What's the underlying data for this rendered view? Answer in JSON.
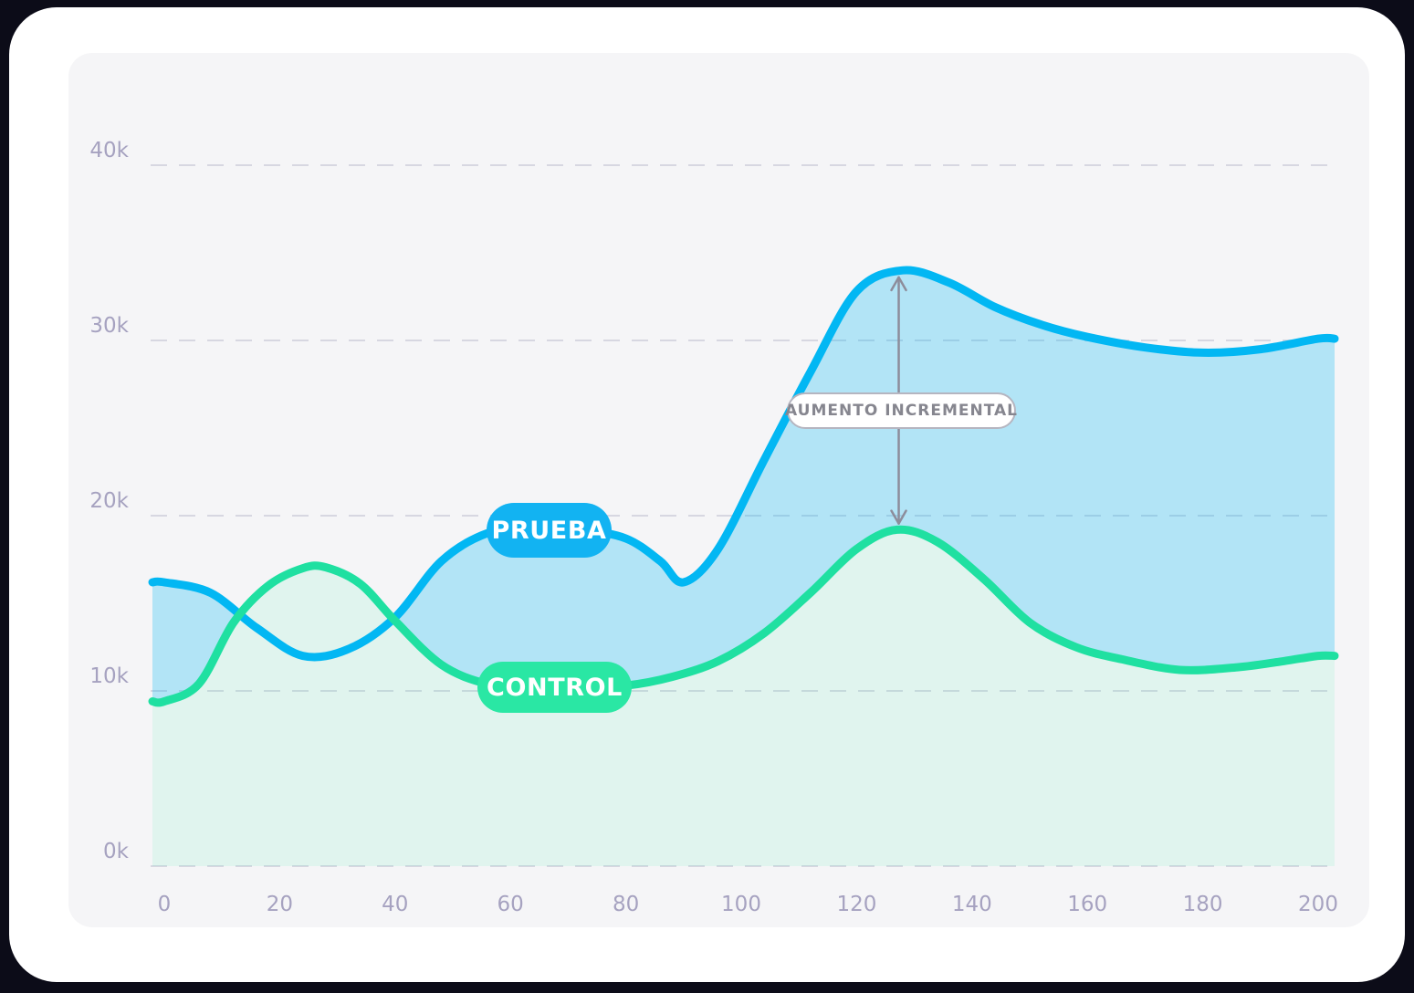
{
  "chart_data": {
    "type": "area",
    "title": "",
    "xlabel": "",
    "ylabel": "",
    "y_unit": "thousands",
    "xlim": [
      0,
      200
    ],
    "ylim": [
      0,
      40
    ],
    "grid": "dashed-horizontal",
    "x_ticks": [
      {
        "v": 0,
        "label": "0"
      },
      {
        "v": 20,
        "label": "20"
      },
      {
        "v": 40,
        "label": "40"
      },
      {
        "v": 60,
        "label": "60"
      },
      {
        "v": 80,
        "label": "80"
      },
      {
        "v": 100,
        "label": "100"
      },
      {
        "v": 120,
        "label": "120"
      },
      {
        "v": 140,
        "label": "140"
      },
      {
        "v": 160,
        "label": "160"
      },
      {
        "v": 180,
        "label": "180"
      },
      {
        "v": 200,
        "label": "200"
      }
    ],
    "y_ticks": [
      {
        "v": 0,
        "label": "0k"
      },
      {
        "v": 10,
        "label": "10k"
      },
      {
        "v": 20,
        "label": "20k"
      },
      {
        "v": 30,
        "label": "30k"
      },
      {
        "v": 40,
        "label": "40k"
      }
    ],
    "series": [
      {
        "name": "PRUEBA",
        "role": "test",
        "points": [
          [
            0,
            16.2
          ],
          [
            8,
            15.6
          ],
          [
            16,
            13.6
          ],
          [
            24,
            12.0
          ],
          [
            32,
            12.4
          ],
          [
            40,
            14.2
          ],
          [
            48,
            17.4
          ],
          [
            56,
            19.0
          ],
          [
            64,
            19.3
          ],
          [
            72,
            19.2
          ],
          [
            80,
            18.7
          ],
          [
            86,
            17.4
          ],
          [
            90,
            16.2
          ],
          [
            96,
            18.1
          ],
          [
            104,
            23.2
          ],
          [
            112,
            28.2
          ],
          [
            120,
            32.8
          ],
          [
            128,
            34.0
          ],
          [
            136,
            33.3
          ],
          [
            144,
            31.9
          ],
          [
            152,
            30.9
          ],
          [
            160,
            30.2
          ],
          [
            170,
            29.6
          ],
          [
            180,
            29.3
          ],
          [
            190,
            29.5
          ],
          [
            200,
            30.1
          ]
        ]
      },
      {
        "name": "CONTROL",
        "role": "control",
        "points": [
          [
            0,
            9.4
          ],
          [
            6,
            10.4
          ],
          [
            12,
            13.9
          ],
          [
            18,
            16.0
          ],
          [
            24,
            17.0
          ],
          [
            28,
            17.05
          ],
          [
            34,
            16.1
          ],
          [
            40,
            14.0
          ],
          [
            48,
            11.5
          ],
          [
            56,
            10.4
          ],
          [
            64,
            10.2
          ],
          [
            72,
            10.2
          ],
          [
            80,
            10.3
          ],
          [
            88,
            10.8
          ],
          [
            96,
            11.7
          ],
          [
            104,
            13.3
          ],
          [
            112,
            15.6
          ],
          [
            120,
            18.1
          ],
          [
            127,
            19.2
          ],
          [
            134,
            18.5
          ],
          [
            142,
            16.4
          ],
          [
            150,
            13.9
          ],
          [
            158,
            12.5
          ],
          [
            166,
            11.8
          ],
          [
            176,
            11.2
          ],
          [
            186,
            11.35
          ],
          [
            194,
            11.7
          ],
          [
            200,
            12.0
          ]
        ]
      }
    ],
    "annotation": {
      "label": "AUMENTO INCREMENTAL",
      "x": 127.3,
      "from_value": 33.6,
      "to_value": 19.55
    },
    "legend_position": "on-curve-pills"
  },
  "colors": {
    "prueba_line": "#02b7f3",
    "prueba_pill": "#12b3f2",
    "prueba_fill": "rgba(2,183,243,0.28)",
    "control_line": "#1fe0a1",
    "control_pill": "#2ae7a4",
    "control_fill": "rgba(42,231,164,0.10)",
    "gridline": "#d7d7e1",
    "axis_text": "#a6a2c0",
    "arrow": "#8d8d9b",
    "panel_bg": "#f5f5f7",
    "card_bg": "#ffffff"
  }
}
